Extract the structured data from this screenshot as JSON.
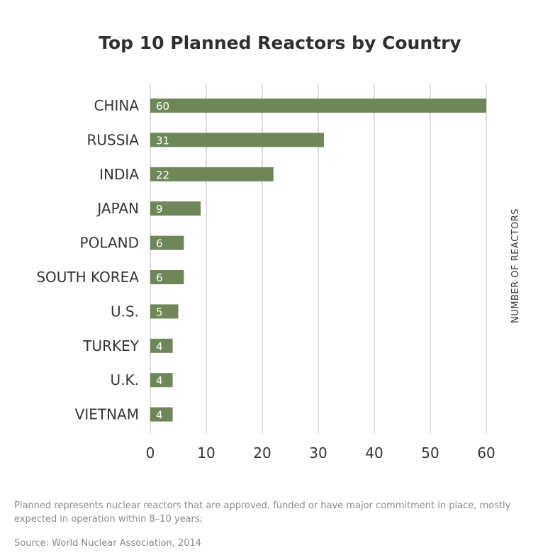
{
  "chart_data": {
    "type": "bar",
    "orientation": "horizontal",
    "title": "Top 10 Planned Reactors by Country",
    "categories": [
      "CHINA",
      "RUSSIA",
      "INDIA",
      "JAPAN",
      "POLAND",
      "SOUTH KOREA",
      "U.S.",
      "TURKEY",
      "U.K.",
      "VIETNAM"
    ],
    "values": [
      60,
      31,
      22,
      9,
      6,
      6,
      5,
      4,
      4,
      4
    ],
    "data_labels": [
      "60",
      "31",
      "22",
      "9",
      "6",
      "6",
      "5",
      "4",
      "4",
      "4"
    ],
    "xlim": [
      0,
      60
    ],
    "xticks": [
      0,
      10,
      20,
      30,
      40,
      50,
      60
    ],
    "xtick_labels": [
      "0",
      "10",
      "20",
      "30",
      "40",
      "50",
      "60"
    ],
    "axis_title": "NUMBER OF REACTORS",
    "grid": true,
    "bar_color": "#6e8759",
    "grid_color": "#bdbdbd"
  },
  "notes": {
    "definition": "Planned represents nuclear reactors that are approved, funded or have major commitment in place, mostly expected in operation within 8–10 years;",
    "source": "Source: World Nuclear Association, 2014"
  }
}
